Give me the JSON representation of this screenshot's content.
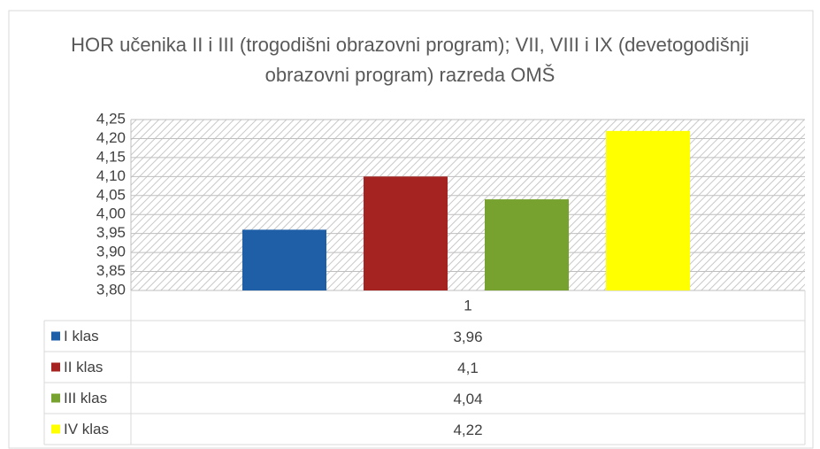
{
  "chart_data": {
    "type": "bar",
    "title": "HOR učenika II i III (trogodišni obrazovni program); VII, VIII i IX (devetogodišnji obrazovni program) razreda OMŠ",
    "categories": [
      "1"
    ],
    "series": [
      {
        "name": "I klas",
        "color": "#1f5fa8",
        "values": [
          3.96
        ],
        "value_labels": [
          "3,96"
        ]
      },
      {
        "name": "II klas",
        "color": "#a52421",
        "values": [
          4.1
        ],
        "value_labels": [
          "4,1"
        ]
      },
      {
        "name": "III klas",
        "color": "#77a22f",
        "values": [
          4.04
        ],
        "value_labels": [
          "4,04"
        ]
      },
      {
        "name": "IV klas",
        "color": "#ffff00",
        "values": [
          4.22
        ],
        "value_labels": [
          "4,22"
        ]
      }
    ],
    "ylim": [
      3.8,
      4.25
    ],
    "yticks": [
      {
        "value": 3.8,
        "label": "3,80"
      },
      {
        "value": 3.85,
        "label": "3,85"
      },
      {
        "value": 3.9,
        "label": "3,90"
      },
      {
        "value": 3.95,
        "label": "3,95"
      },
      {
        "value": 4.0,
        "label": "4,00"
      },
      {
        "value": 4.05,
        "label": "4,05"
      },
      {
        "value": 4.1,
        "label": "4,10"
      },
      {
        "value": 4.15,
        "label": "4,15"
      },
      {
        "value": 4.2,
        "label": "4,20"
      },
      {
        "value": 4.25,
        "label": "4,25"
      }
    ],
    "grid": true,
    "legend": "table"
  }
}
